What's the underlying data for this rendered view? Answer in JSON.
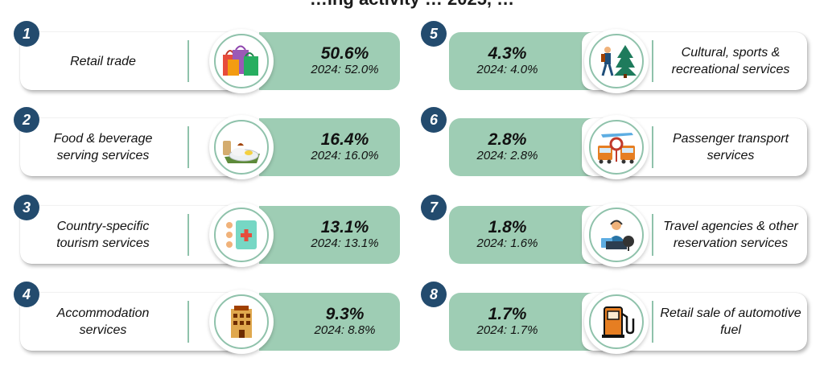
{
  "title": "…ing activity … 2025, …",
  "items": [
    {
      "rank": "1",
      "label": "Retail trade",
      "share": "50.6%",
      "prev": "2024: 52.0%",
      "icon": "shopping-bags-icon"
    },
    {
      "rank": "2",
      "label": "Food & beverage serving services",
      "share": "16.4%",
      "prev": "2024: 16.0%",
      "icon": "food-plate-icon"
    },
    {
      "rank": "3",
      "label": "Country-specific tourism services",
      "share": "13.1%",
      "prev": "2024: 13.1%",
      "icon": "medical-kit-icon"
    },
    {
      "rank": "4",
      "label": "Accommodation services",
      "share": "9.3%",
      "prev": "2024: 8.8%",
      "icon": "hotel-icon"
    },
    {
      "rank": "5",
      "label": "Cultural, sports & recreational services",
      "share": "4.3%",
      "prev": "2024: 4.0%",
      "icon": "hiker-tree-icon"
    },
    {
      "rank": "6",
      "label": "Passenger transport services",
      "share": "2.8%",
      "prev": "2024: 2.8%",
      "icon": "transport-icon"
    },
    {
      "rank": "7",
      "label": "Travel agencies & other reservation services",
      "share": "1.8%",
      "prev": "2024: 1.6%",
      "icon": "travel-agent-icon"
    },
    {
      "rank": "8",
      "label": "Retail sale of automotive fuel",
      "share": "1.7%",
      "prev": "2024: 1.7%",
      "icon": "fuel-pump-icon"
    }
  ],
  "colors": {
    "accent": "#9ecdb4",
    "badge": "#234b6e",
    "ring": "#8fc2ab"
  }
}
